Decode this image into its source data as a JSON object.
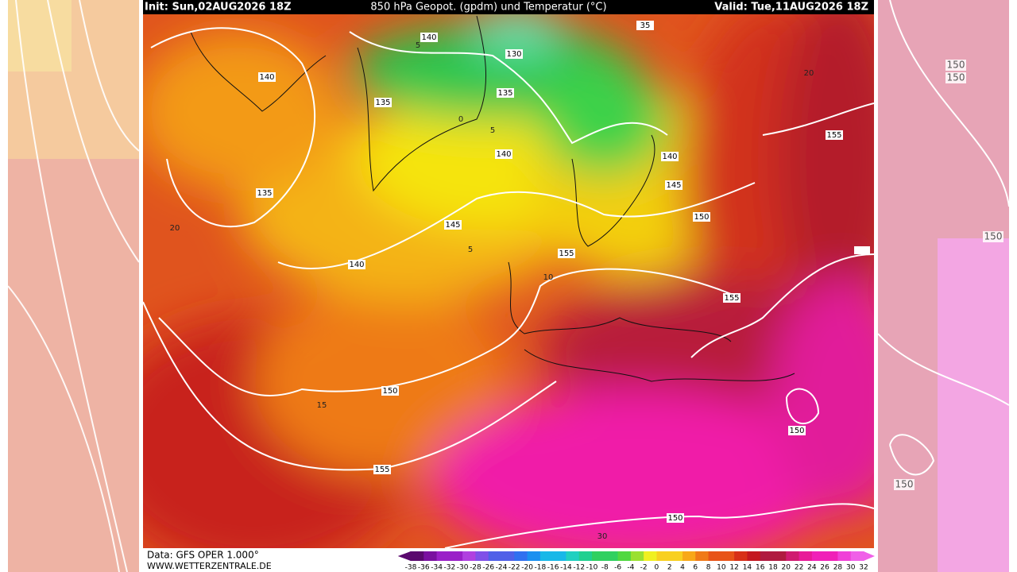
{
  "header": {
    "init": "Init: Sun,02AUG2026 18Z",
    "title": "850 hPa Geopot. (gpdm) und Temperatur (°C)",
    "valid": "Valid: Tue,11AUG2026 18Z"
  },
  "footer": {
    "data": "Data: GFS OPER 1.000°",
    "site": "WWW.WETTERZENTRALE.DE"
  },
  "geopotential_labels": [
    "140",
    "130",
    "135",
    "140",
    "135",
    "135",
    "140",
    "35",
    "145",
    "140",
    "145",
    "150",
    "140",
    "150",
    "155",
    "155",
    "150",
    "155",
    "150",
    "155"
  ],
  "temperature_labels": [
    "5",
    "0",
    "5",
    "5",
    "10",
    "15",
    "20",
    "20",
    "30"
  ],
  "side_labels": [
    "150",
    "150",
    "150",
    "150"
  ],
  "colorbar": [
    -38,
    -36,
    -34,
    -32,
    -30,
    -28,
    -26,
    -24,
    -22,
    -20,
    -18,
    -16,
    -14,
    -12,
    -10,
    -8,
    -6,
    -4,
    -2,
    0,
    2,
    4,
    6,
    8,
    10,
    12,
    14,
    16,
    18,
    20,
    22,
    24,
    26,
    28,
    30,
    32
  ]
}
